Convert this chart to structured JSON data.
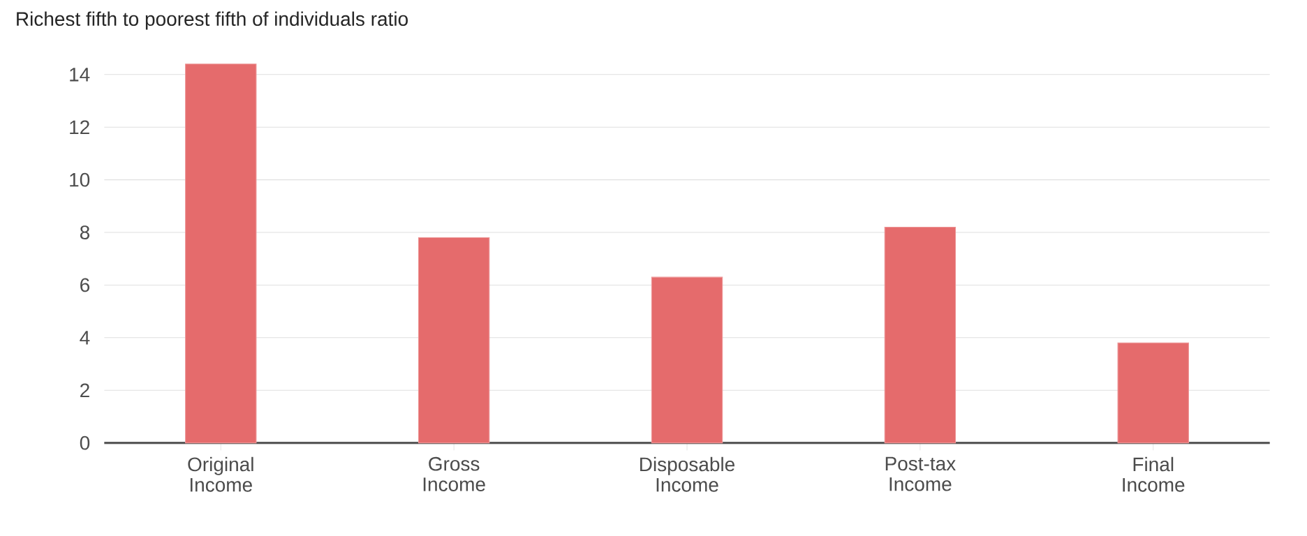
{
  "chart_data": {
    "type": "bar",
    "title": "Richest fifth to poorest fifth of individuals ratio",
    "categories": [
      "Original Income",
      "Gross Income",
      "Disposable Income",
      "Post-tax Income",
      "Final Income"
    ],
    "values": [
      14.4,
      7.8,
      6.3,
      8.2,
      3.8
    ],
    "color": "#e56b6c",
    "ylim": [
      0,
      14.5
    ],
    "yticks": [
      0,
      2,
      4,
      6,
      8,
      10,
      12,
      14
    ],
    "grid": "y"
  }
}
